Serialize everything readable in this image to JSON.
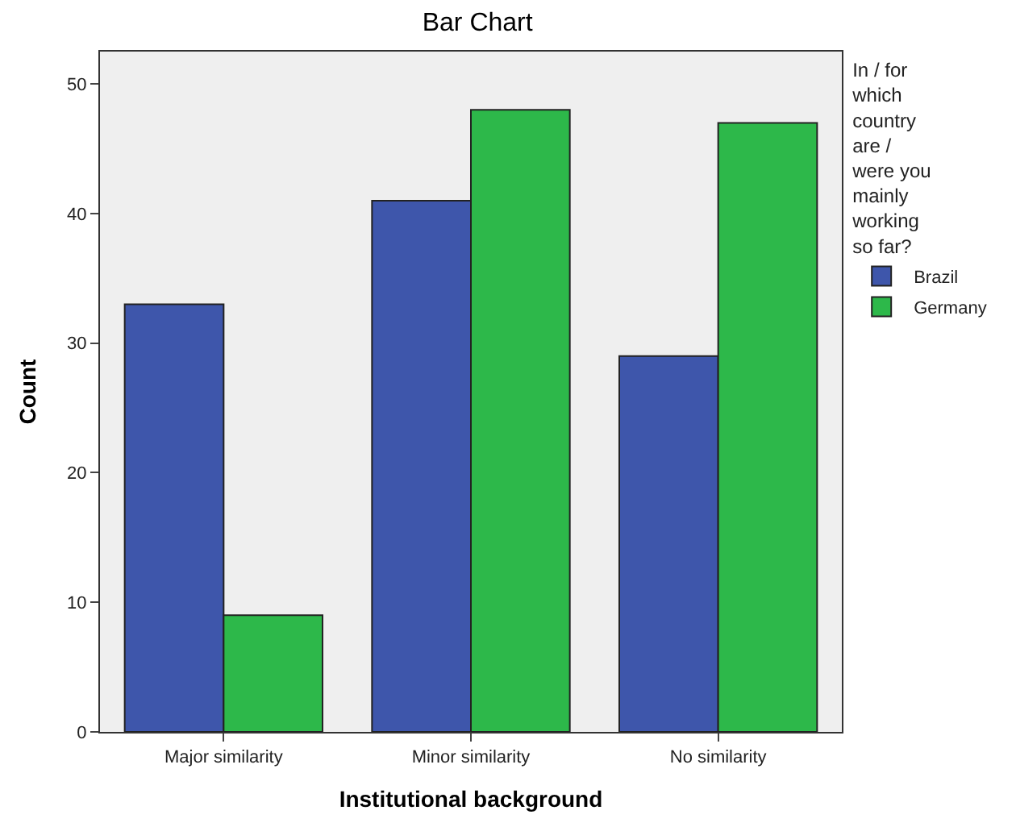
{
  "chart_data": {
    "type": "bar",
    "title": "Bar Chart",
    "xlabel": "Institutional background",
    "ylabel": "Count",
    "legend_title": "In / for which country are / were you mainly working so far?",
    "categories": [
      "Major similarity",
      "Minor similarity",
      "No similarity"
    ],
    "series": [
      {
        "name": "Brazil",
        "color": "#3e56ab",
        "values": [
          33,
          41,
          29
        ]
      },
      {
        "name": "Germany",
        "color": "#2db84a",
        "values": [
          9,
          48,
          47
        ]
      }
    ],
    "ylim": [
      0,
      52.5
    ],
    "yticks": [
      0,
      10,
      20,
      30,
      40,
      50
    ],
    "grid": false,
    "legend": "right"
  }
}
